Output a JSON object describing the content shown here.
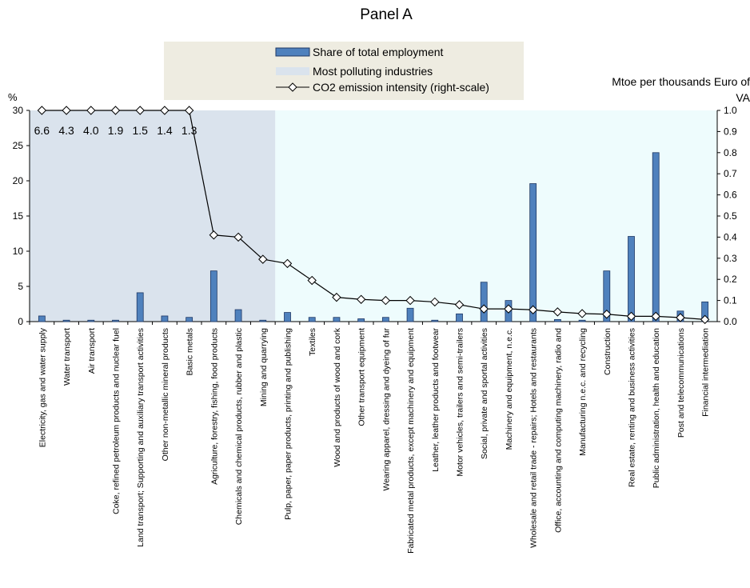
{
  "chart_data": {
    "type": "bar-line",
    "title": "Panel A",
    "ylabel": "%",
    "y2label": "Mtoe per thousands Euro of VA",
    "categories": [
      "Electricity, gas and water  supply",
      "Water transport",
      "Air transport",
      "Coke, refined petroleum  products and nuclear fuel",
      "Land transport;  Supporting  and auxiliary transport  activities",
      "Other non-metallic  mineral  products",
      "Basic metals",
      "Agriculture,  forestry,  fishing, food products",
      "Chemicals and chemical products,  rubber and plastic",
      "Mining and  quarrying",
      "Pulp, paper, paper products,  printing and publishing",
      "Textiles",
      "Wood and products  of wood and cork",
      "Other transport  equipment",
      "Wearing apparel, dressing and dyeing of fur",
      "Fabricated metal products,  except machinery and equipment",
      "Leather, leather products and footwear",
      "Motor vehicles, trailers and semi-trailers",
      "Social, private and sportal  activities",
      "Machinery and  equipment,  n.e.c.",
      "Wholesale and retail trade  - repairs; Hotels and  restaurants",
      "Office, accounting and computing  machinery,  radio and",
      "Manufacturing  n.e.c. and recycling",
      "Construction",
      "Real estate,  renting and business  activities",
      "Public administration,  health and  education",
      "Post and telecommunications",
      "Financial intermediation"
    ],
    "series": [
      {
        "name": "Share of total employment",
        "type": "bar",
        "color": "#4f81bd",
        "values": [
          0.8,
          0.2,
          0.2,
          0.2,
          4.1,
          0.8,
          0.6,
          7.2,
          1.7,
          0.2,
          1.3,
          0.6,
          0.6,
          0.4,
          0.6,
          1.9,
          0.2,
          1.1,
          5.6,
          3.0,
          19.6,
          0.3,
          0.2,
          7.2,
          12.1,
          24.0,
          1.5,
          2.8
        ]
      },
      {
        "name": "CO2 emission intensity (right-scale)",
        "type": "line",
        "axis": "y2",
        "color": "#000000",
        "values": [
          6.6,
          4.3,
          4.0,
          1.9,
          1.5,
          1.4,
          1.3,
          0.41,
          0.4,
          0.295,
          0.275,
          0.195,
          0.115,
          0.105,
          0.1,
          0.1,
          0.093,
          0.08,
          0.06,
          0.06,
          0.056,
          0.046,
          0.038,
          0.035,
          0.025,
          0.025,
          0.019,
          0.01
        ],
        "value_labels": [
          "6.6",
          "4.3",
          "4.0",
          "1.9",
          "1.5",
          "1.4",
          "1.3",
          null,
          null,
          null,
          null,
          null,
          null,
          null,
          null,
          null,
          null,
          null,
          null,
          null,
          null,
          null,
          null,
          null,
          null,
          null,
          null,
          null
        ]
      }
    ],
    "highlight": {
      "name": "Most polluting industries",
      "color": "#dae3ed",
      "from": "Electricity, gas and water  supply",
      "to": "Mining and  quarrying"
    },
    "background": "#eefcfd",
    "legend_background": "#eeece1",
    "ylim": [
      0,
      30
    ],
    "yticks": [
      0,
      5,
      10,
      15,
      20,
      25,
      30
    ],
    "y2lim": [
      0,
      1
    ],
    "y2ticks": [
      {
        "value": 0,
        "label": "0.0"
      },
      0.1,
      0.2,
      0.3,
      0.4,
      0.5,
      0.6,
      0.7,
      0.8,
      0.9,
      {
        "value": 1,
        "label": "1.0"
      }
    ]
  }
}
